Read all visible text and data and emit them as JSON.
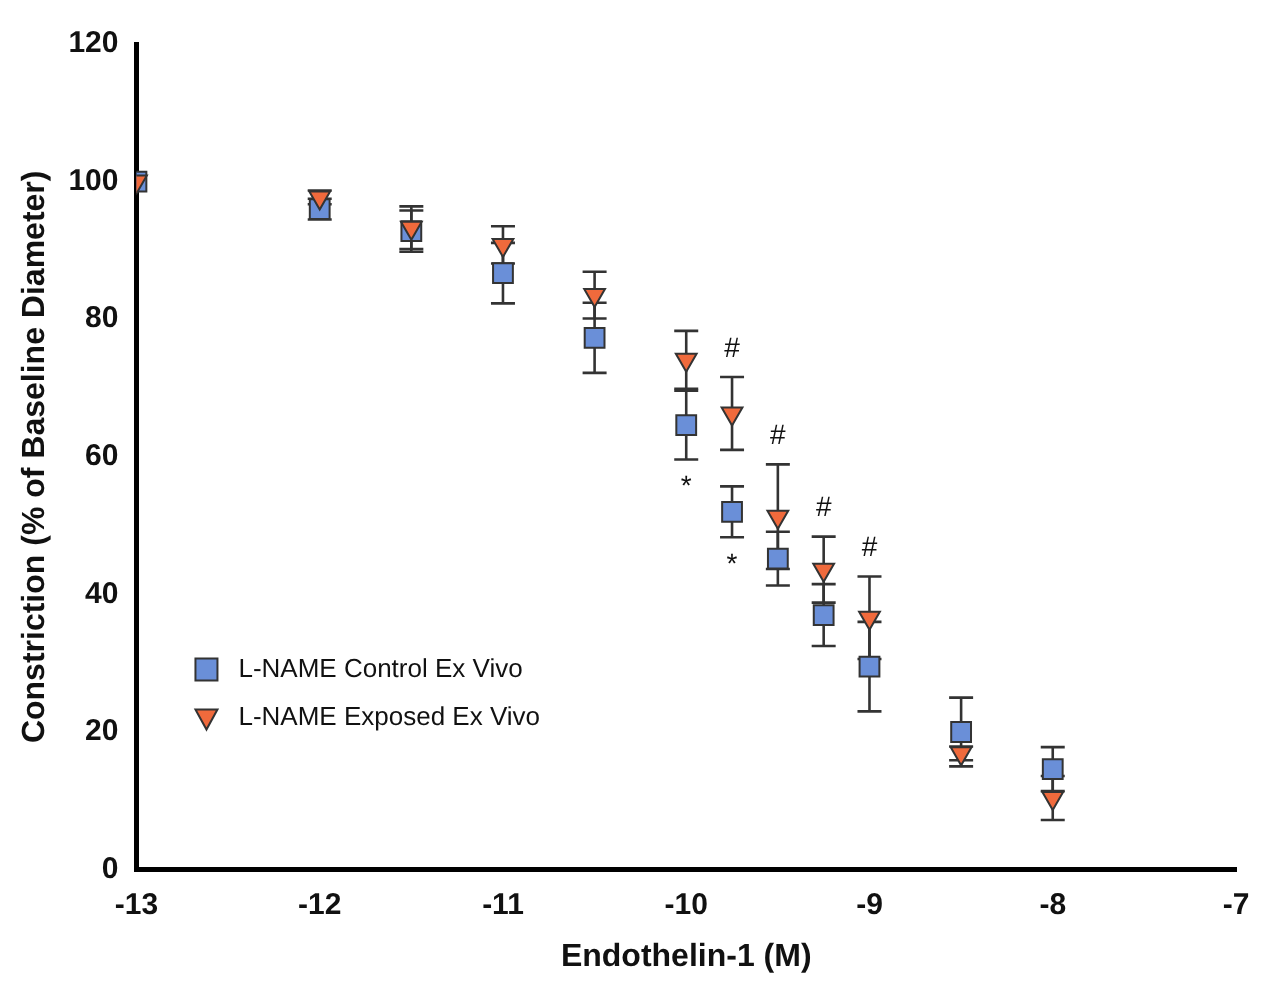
{
  "chart_data": {
    "type": "scatter",
    "xlabel": "Endothelin-1 (M)",
    "ylabel": "Constriction (% of Baseline Diameter)",
    "x": [
      -13,
      -12,
      -11.5,
      -11,
      -10.5,
      -10,
      -9.75,
      -9.5,
      -9.25,
      -9,
      -8.5,
      -8
    ],
    "series": [
      {
        "name": "L-NAME Control Ex Vivo",
        "color": "#6a8fd8",
        "marker": "square",
        "values": [
          100,
          96,
          92.8,
          86.7,
          77.3,
          64.6,
          52,
          45.2,
          37,
          29.5,
          20,
          14.6
        ],
        "errors": [
          null,
          1.5,
          3,
          4.4,
          5.1,
          5,
          3.7,
          3.9,
          4.5,
          6.5,
          5,
          3.2
        ]
      },
      {
        "name": "L-NAME Exposed Ex Vivo",
        "color": "#f06a3c",
        "marker": "triangle",
        "values": [
          100,
          97.7,
          93.3,
          90.8,
          83.5,
          74.1,
          66.3,
          51.3,
          43.6,
          36.6,
          16.9,
          10.4
        ],
        "errors": [
          null,
          1,
          3.1,
          2.7,
          3.4,
          4.2,
          5.3,
          7.6,
          4.8,
          6,
          1,
          3.2
        ]
      }
    ],
    "xlim": [
      -13,
      -7
    ],
    "xticks": [
      -13,
      -12,
      -11,
      -10,
      -9,
      -8,
      -7
    ],
    "ylim": [
      0,
      120
    ],
    "yticks": [
      0,
      20,
      40,
      60,
      80,
      100,
      120
    ],
    "grid": false,
    "legend": "bottom left",
    "annotations": [
      {
        "text": "*",
        "x": -10,
        "y": 64.6
      },
      {
        "text": "*",
        "x": -9.75,
        "y": 52
      },
      {
        "text": "#",
        "x": -9.75,
        "y": 66.3
      },
      {
        "text": "#",
        "x": -9.5,
        "y": 51.3
      },
      {
        "text": "#",
        "x": -9.25,
        "y": 43.6
      },
      {
        "text": "#",
        "x": -9,
        "y": 36.6
      }
    ]
  }
}
